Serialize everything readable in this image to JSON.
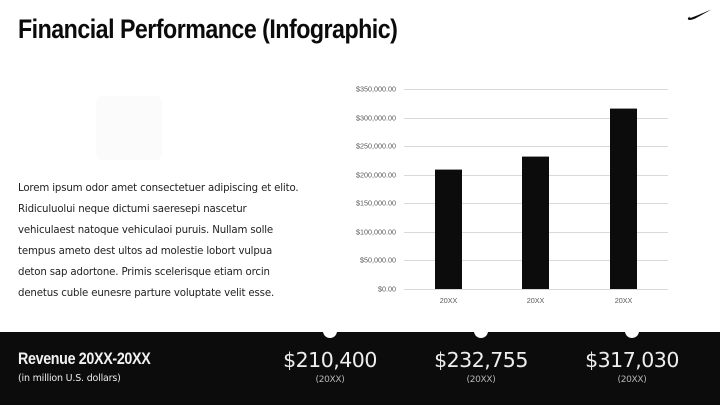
{
  "header": {
    "title": "Financial Performance (Infographic)",
    "logo_icon": "swoosh-logo-icon"
  },
  "body": {
    "paragraph": "Lorem ipsum odor amet consectetuer adipiscing et elito. Ridiculuolui neque dictumi saeresepi nascetur vehiculaest natoque vehiculaoi puruis. Nullam solle tempus ameto dest ultos ad molestie lobort vulpua deton sap adortone. Primis scelerisque etiam orcin denetus cuble eunesre parture voluptate velit esse."
  },
  "chart_data": {
    "type": "bar",
    "title": "",
    "xlabel": "",
    "ylabel": "",
    "categories": [
      "20XX",
      "20XX",
      "20XX"
    ],
    "values": [
      210400,
      232755,
      317030
    ],
    "ylim": [
      0,
      350000
    ],
    "yticks": [
      "$0.00",
      "$50,000.00",
      "$100,000.00",
      "$150,000.00",
      "$200,000.00",
      "$250,000.00",
      "$300,000.00",
      "$350,000.00"
    ],
    "grid": true,
    "legend": "none",
    "bar_color": "#0c0c0c"
  },
  "summary": {
    "title": "Revenue 20XX-20XX",
    "subtitle": "(in million U.S. dollars)",
    "stats": [
      {
        "value": "$210,400",
        "year": "(20XX)"
      },
      {
        "value": "$232,755",
        "year": "(20XX)"
      },
      {
        "value": "$317,030",
        "year": "(20XX)"
      }
    ]
  },
  "colors": {
    "background": "#ffffff",
    "band": "#0c0c0c",
    "text_dark": "#0c0c0c",
    "text_light": "#eeeeee",
    "gridline": "#d9d9d9"
  }
}
